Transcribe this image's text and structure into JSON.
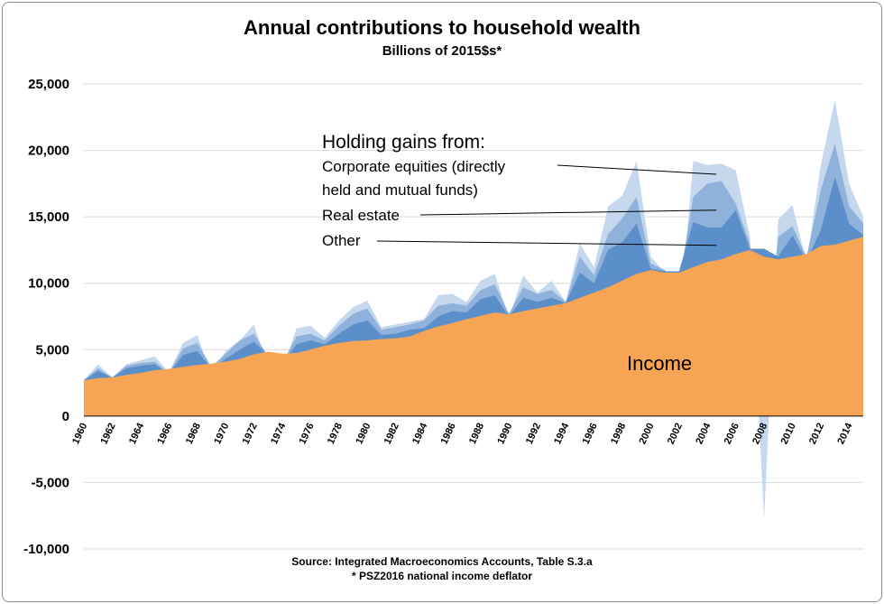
{
  "chart_data": {
    "type": "area",
    "title": "Annual contributions to household wealth",
    "subtitle": "Billions of 2015$s*",
    "ylim": [
      -10000,
      25000
    ],
    "yticks": [
      25000,
      20000,
      15000,
      10000,
      5000,
      0,
      -5000,
      -10000
    ],
    "ytick_labels": [
      "25,000",
      "20,000",
      "15,000",
      "10,000",
      "5,000",
      "0",
      "-5,000",
      "-10,000"
    ],
    "xlim": [
      1960,
      2015
    ],
    "xticks": [
      "1960",
      "1962",
      "1964",
      "1966",
      "1968",
      "1970",
      "1972",
      "1974",
      "1976",
      "1978",
      "1980",
      "1982",
      "1984",
      "1986",
      "1988",
      "1990",
      "1992",
      "1994",
      "1996",
      "1998",
      "2000",
      "2002",
      "2004",
      "2006",
      "2008",
      "2010",
      "2012",
      "2014"
    ],
    "grid": true,
    "years": [
      1960,
      1961,
      1962,
      1963,
      1964,
      1965,
      1966,
      1967,
      1968,
      1969,
      1970,
      1971,
      1972,
      1973,
      1974,
      1975,
      1976,
      1977,
      1978,
      1979,
      1980,
      1981,
      1982,
      1983,
      1984,
      1985,
      1986,
      1987,
      1988,
      1989,
      1990,
      1991,
      1992,
      1993,
      1994,
      1995,
      1996,
      1997,
      1998,
      1999,
      2000,
      2001,
      2002,
      2003,
      2004,
      2005,
      2006,
      2007,
      2008,
      2009,
      2010,
      2011,
      2012,
      2013,
      2014,
      2015
    ],
    "series": [
      {
        "name": "Income",
        "color": "#f7a455",
        "values": [
          2700,
          2850,
          2900,
          3100,
          3250,
          3450,
          3550,
          3700,
          3850,
          3950,
          4100,
          4300,
          4650,
          4850,
          4700,
          4750,
          5000,
          5300,
          5500,
          5650,
          5700,
          5800,
          5850,
          6000,
          6400,
          6750,
          7000,
          7300,
          7550,
          7800,
          7650,
          7900,
          8100,
          8300,
          8500,
          8900,
          9300,
          9700,
          10200,
          10700,
          11000,
          10800,
          10800,
          11200,
          11600,
          11800,
          12200,
          12500,
          12000,
          11800,
          12000,
          12200,
          12800,
          12900,
          13200,
          13500
        ]
      },
      {
        "name": "Other",
        "color": "#5a8fca",
        "values": [
          2700,
          3400,
          2900,
          3600,
          3800,
          3900,
          3200,
          4600,
          4900,
          3600,
          4300,
          5000,
          5600,
          4600,
          4000,
          5400,
          5700,
          5400,
          6200,
          6900,
          7200,
          6100,
          6200,
          6500,
          6600,
          7500,
          7900,
          7800,
          8800,
          9100,
          7500,
          8900,
          8600,
          8900,
          8500,
          10800,
          10000,
          12500,
          13100,
          14500,
          11100,
          10900,
          10900,
          14600,
          14200,
          14200,
          15500,
          12600,
          12600,
          12000,
          13600,
          11700,
          14000,
          18000,
          14500,
          13600
        ]
      },
      {
        "name": "Real estate",
        "color": "#8fb2dc",
        "values": [
          2700,
          3600,
          2900,
          3800,
          4000,
          4100,
          3250,
          5100,
          5500,
          3700,
          4700,
          5700,
          6200,
          4500,
          4000,
          6000,
          6200,
          5700,
          6800,
          7700,
          8100,
          6500,
          6700,
          6900,
          7200,
          8300,
          8500,
          8300,
          9500,
          9900,
          7700,
          9700,
          9200,
          9500,
          8600,
          12000,
          10600,
          13700,
          14900,
          16500,
          11500,
          11000,
          10000,
          16500,
          17500,
          17700,
          16000,
          13000,
          4000,
          13500,
          14300,
          12000,
          17000,
          20500,
          15800,
          14500
        ]
      },
      {
        "name": "Corporate equities (directly held and mutual funds)",
        "color": "#c6d8ee",
        "values": [
          2700,
          3900,
          2900,
          3900,
          4200,
          4500,
          3300,
          5500,
          6100,
          3100,
          4900,
          5700,
          6900,
          3700,
          3400,
          6600,
          6800,
          5900,
          7200,
          8200,
          8700,
          6700,
          6900,
          7100,
          7300,
          9100,
          9200,
          8600,
          10200,
          10700,
          7400,
          10600,
          9300,
          10200,
          8600,
          13000,
          11200,
          15800,
          16600,
          19200,
          12000,
          10800,
          6800,
          19200,
          18900,
          19000,
          18500,
          13500,
          -7800,
          14800,
          15900,
          11500,
          18900,
          23800,
          17500,
          15000
        ]
      }
    ],
    "legend_heading": "Holding gains from:",
    "annotations": [
      {
        "text": "Corporate equities (directly",
        "text2": "held and mutual funds)",
        "target_year": 2004,
        "target_value": 18200
      },
      {
        "text": "Real estate",
        "target_year": 2004,
        "target_value": 15500
      },
      {
        "text": "Other",
        "target_year": 2004,
        "target_value": 12850
      }
    ],
    "area_label": "Income"
  },
  "footer": {
    "source": "Source: Integrated Macroeconomics Accounts, Table S.3.a",
    "note": "* PSZ2016 national income deflator"
  }
}
